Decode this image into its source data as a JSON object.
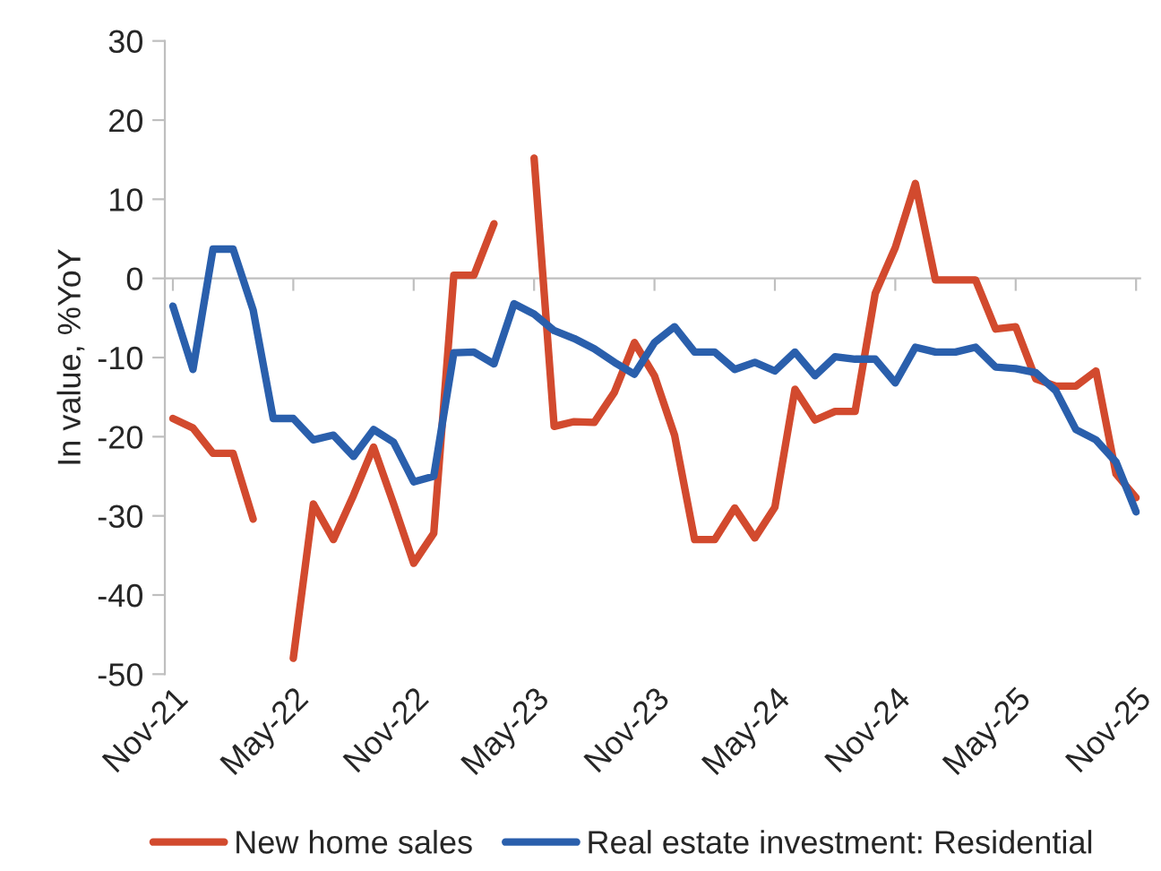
{
  "chart_data": {
    "type": "line",
    "ylabel": "In value, %YoY",
    "categories": [
      "Nov-21",
      null,
      null,
      null,
      null,
      null,
      "May-22",
      null,
      null,
      null,
      null,
      null,
      "Nov-22",
      null,
      null,
      null,
      null,
      null,
      "May-23",
      null,
      null,
      null,
      null,
      null,
      "Nov-23",
      null,
      null,
      null,
      null,
      null,
      "May-24",
      null,
      null,
      null,
      null,
      null,
      "Nov-24",
      null,
      null,
      null,
      null,
      null,
      "May-25",
      null,
      null,
      null,
      null,
      null,
      "Nov-25"
    ],
    "series": [
      {
        "name": "New home sales",
        "color": "#d24a2e",
        "values": [
          -17.7,
          -18.9,
          -22.1,
          -22.1,
          -30.4,
          null,
          -48,
          -28.5,
          -33,
          -27.4,
          -21.3,
          -28.5,
          -36,
          -32.2,
          0.4,
          0.4,
          6.9,
          null,
          15.2,
          -18.7,
          -18.1,
          -18.2,
          -14.4,
          -8.1,
          -12.3,
          -19.8,
          -33,
          -33,
          -29,
          -32.8,
          -28.9,
          -14,
          -17.9,
          -16.8,
          -16.8,
          -1.9,
          3.9,
          12,
          -0.2,
          -0.2,
          -0.2,
          -6.4,
          -6.1,
          -12.7,
          -13.6,
          -13.6,
          -11.7,
          -24.7,
          -27.7
        ]
      },
      {
        "name": "Real estate investment: Residential",
        "color": "#2a5fac",
        "values": [
          -3.5,
          -11.5,
          3.7,
          3.7,
          -4,
          -17.7,
          -17.7,
          -20.4,
          -19.8,
          -22.5,
          -19.1,
          -20.7,
          -25.7,
          -25,
          -9.4,
          -9.3,
          -10.8,
          -3.2,
          -4.5,
          -6.6,
          -7.6,
          -8.9,
          -10.6,
          -12.1,
          -8.1,
          -6.1,
          -9.3,
          -9.3,
          -11.5,
          -10.6,
          -11.7,
          -9.3,
          -12.3,
          -9.9,
          -10.2,
          -10.2,
          -13.2,
          -8.7,
          -9.3,
          -9.3,
          -8.7,
          -11.2,
          -11.4,
          -11.9,
          -14.2,
          -19.1,
          -20.4,
          -23.2,
          -29.5
        ]
      }
    ],
    "ylim": [
      -50,
      30
    ],
    "yticks": [
      -50,
      -40,
      -30,
      -20,
      -10,
      0,
      10,
      20,
      30
    ],
    "legend": "bottom",
    "marker": "none",
    "line_style": "solid"
  }
}
